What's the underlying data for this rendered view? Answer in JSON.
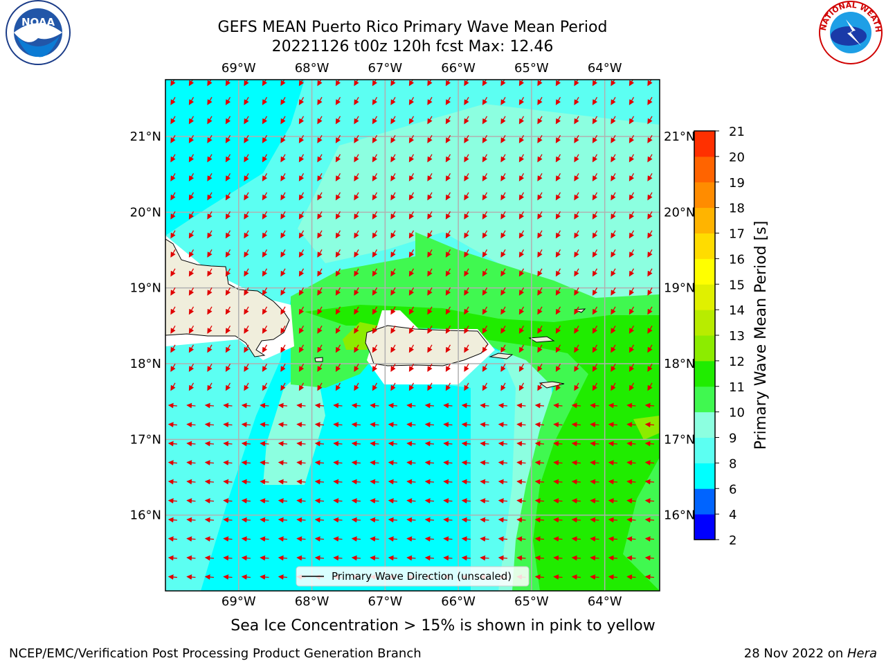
{
  "title": {
    "line1": "GEFS MEAN Puerto Rico Primary Wave Mean Period",
    "line2": "20221126 t00z 120h fcst   Max: 12.46"
  },
  "map": {
    "lon_labels": [
      "69°W",
      "68°W",
      "67°W",
      "66°W",
      "65°W",
      "64°W"
    ],
    "lon_values": [
      -69,
      -68,
      -67,
      -66,
      -65,
      -64
    ],
    "lat_labels": [
      "21°N",
      "20°N",
      "19°N",
      "18°N",
      "17°N",
      "16°N"
    ],
    "lat_values": [
      21,
      20,
      19,
      18,
      17,
      16
    ],
    "lon_range": [
      -70.0,
      -63.25
    ],
    "lat_range": [
      15.0,
      21.75
    ],
    "arrow_direction": "toward southwest",
    "legend_label": "Primary Wave Direction (unscaled)",
    "colors": {
      "land": "#f0eedc",
      "period_6_8": "#00ffff",
      "period_8_9": "#5cfff2",
      "period_9_10": "#8cffe0",
      "period_10_11": "#40f850",
      "period_11_12": "#20ec00",
      "period_12_13": "#8cec00",
      "arrow": "#e00000",
      "grid": "#b0b0b0"
    }
  },
  "colorbar": {
    "label": "Primary Wave Mean Period [s]",
    "ticks": [
      "2",
      "4",
      "6",
      "8",
      "9",
      "10",
      "11",
      "12",
      "13",
      "14",
      "15",
      "16",
      "17",
      "18",
      "19",
      "20",
      "21"
    ],
    "colors": [
      "#0000ff",
      "#0064ff",
      "#00ffff",
      "#5cfff2",
      "#8cffe0",
      "#40f850",
      "#20ec00",
      "#8cec00",
      "#b8ec00",
      "#e0f000",
      "#ffff00",
      "#ffdc00",
      "#ffb400",
      "#ff8c00",
      "#ff6400",
      "#ff3000"
    ]
  },
  "subtitle": "Sea Ice Concentration > 15% is shown in pink to yellow",
  "footer": {
    "left": "NCEP/EMC/Verification Post Processing Product Generation Branch",
    "right_prefix": "28 Nov 2022 on ",
    "right_host": "Hera"
  },
  "logos": {
    "noaa": "NOAA",
    "nws": "NATIONAL WEATHER SERVICE"
  }
}
